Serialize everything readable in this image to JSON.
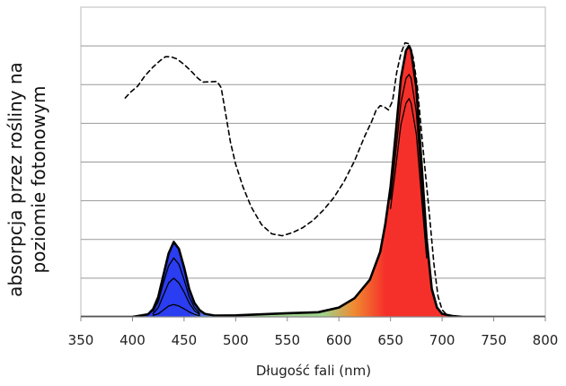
{
  "chart_data": {
    "type": "line",
    "title": "",
    "xlabel": "Długość fali (nm)",
    "ylabel_line1": "absorpcja przez rośliny na",
    "ylabel_line2": "poziomie fotonowym",
    "xlim": [
      350,
      800
    ],
    "ylim": [
      0,
      1
    ],
    "x_ticks": [
      "350",
      "400",
      "450",
      "500",
      "550",
      "600",
      "650",
      "700",
      "750",
      "800"
    ],
    "grid": true,
    "legend": "none",
    "colors": {
      "blue": "#2a3df0",
      "red": "#f5302a",
      "orange": "#f08a30",
      "green": "#9fd28a",
      "line": "#000000",
      "grid": "#999999"
    },
    "series": [
      {
        "style": "dashed",
        "x": [
          393,
          398,
          405,
          412,
          420,
          427,
          432,
          437,
          443,
          450,
          457,
          463,
          468,
          475,
          482,
          486,
          490,
          495,
          500,
          507,
          515,
          525,
          535,
          545,
          555,
          565,
          575,
          585,
          595,
          605,
          615,
          625,
          632,
          636,
          640,
          644,
          648,
          652,
          656,
          660,
          664,
          668,
          672,
          676,
          680,
          684,
          688,
          692,
          696,
          700,
          705
        ],
        "y": [
          0.707,
          0.725,
          0.745,
          0.778,
          0.807,
          0.828,
          0.84,
          0.84,
          0.833,
          0.815,
          0.793,
          0.772,
          0.758,
          0.759,
          0.76,
          0.74,
          0.662,
          0.563,
          0.493,
          0.42,
          0.355,
          0.298,
          0.268,
          0.262,
          0.272,
          0.288,
          0.312,
          0.345,
          0.385,
          0.437,
          0.503,
          0.583,
          0.633,
          0.667,
          0.682,
          0.678,
          0.668,
          0.698,
          0.79,
          0.85,
          0.885,
          0.882,
          0.838,
          0.745,
          0.598,
          0.458,
          0.32,
          0.173,
          0.067,
          0.023,
          0.005
        ]
      },
      {
        "style": "solid-filled-spectrum",
        "x": [
          350,
          400,
          415,
          420,
          425,
          430,
          435,
          440,
          445,
          450,
          455,
          460,
          465,
          470,
          480,
          500,
          550,
          580,
          600,
          615,
          630,
          640,
          645,
          650,
          655,
          660,
          665,
          668,
          670,
          675,
          680,
          685,
          690,
          695,
          700,
          710,
          720,
          750,
          800
        ],
        "y": [
          0.0,
          0.0,
          0.008,
          0.025,
          0.065,
          0.135,
          0.205,
          0.242,
          0.22,
          0.16,
          0.09,
          0.045,
          0.022,
          0.01,
          0.004,
          0.005,
          0.012,
          0.015,
          0.03,
          0.06,
          0.12,
          0.21,
          0.3,
          0.42,
          0.59,
          0.77,
          0.86,
          0.875,
          0.86,
          0.74,
          0.5,
          0.25,
          0.09,
          0.03,
          0.01,
          0.003,
          0.0,
          0.0,
          0.0
        ]
      },
      {
        "style": "solid",
        "x": [
          420,
          425,
          430,
          435,
          440,
          445,
          450,
          455,
          460,
          465,
          650,
          655,
          660,
          665,
          668,
          670,
          675,
          680,
          685
        ],
        "y": [
          0.018,
          0.05,
          0.11,
          0.165,
          0.19,
          0.17,
          0.12,
          0.065,
          0.03,
          0.012,
          0.38,
          0.53,
          0.69,
          0.77,
          0.783,
          0.77,
          0.66,
          0.44,
          0.22
        ]
      },
      {
        "style": "solid",
        "x": [
          420,
          425,
          430,
          435,
          440,
          445,
          450,
          455,
          460,
          465,
          650,
          655,
          660,
          665,
          668,
          670,
          675,
          680,
          685
        ],
        "y": [
          0.01,
          0.03,
          0.07,
          0.11,
          0.125,
          0.11,
          0.08,
          0.045,
          0.02,
          0.008,
          0.35,
          0.48,
          0.62,
          0.69,
          0.705,
          0.69,
          0.59,
          0.39,
          0.19
        ]
      },
      {
        "style": "solid",
        "x": [
          420,
          425,
          430,
          435,
          440,
          445,
          450,
          455,
          460,
          465
        ],
        "y": [
          0.005,
          0.01,
          0.022,
          0.035,
          0.04,
          0.035,
          0.026,
          0.016,
          0.008,
          0.004
        ]
      }
    ]
  }
}
